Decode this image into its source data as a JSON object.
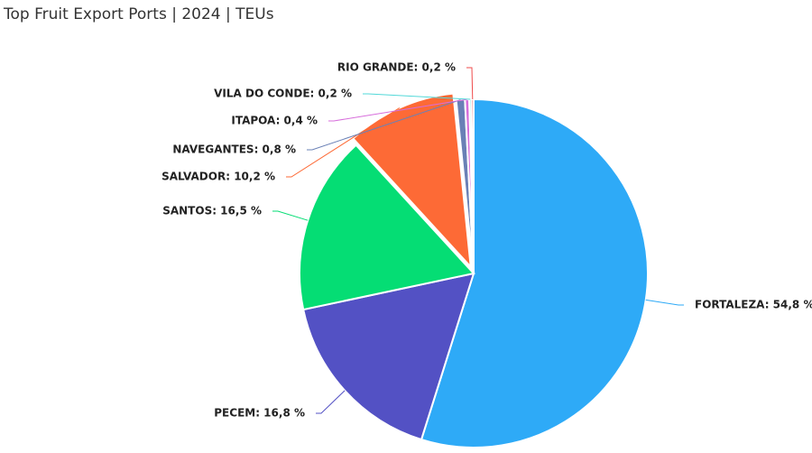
{
  "chart_data": {
    "type": "pie",
    "title": "Top Fruit Export Ports | 2024 | TEUs",
    "values": [
      54.8,
      16.8,
      16.5,
      10.2,
      0.8,
      0.4,
      0.2,
      0.2
    ],
    "value_labels": [
      "FORTALEZA: 54,8 %",
      "PECEM: 16,8 %",
      "SANTOS: 16,5 %",
      "SALVADOR: 10,2 %",
      "NAVEGANTES: 0,8 %",
      "ITAPOA: 0,4 %",
      "VILA DO CONDE: 0,2 %",
      "RIO GRANDE: 0,2 %"
    ],
    "colors": [
      "#2eaaf7",
      "#5351c4",
      "#05dd74",
      "#fd6a36",
      "#6a80b6",
      "#d76ddb",
      "#52d8d8",
      "#ef4b4b"
    ]
  }
}
